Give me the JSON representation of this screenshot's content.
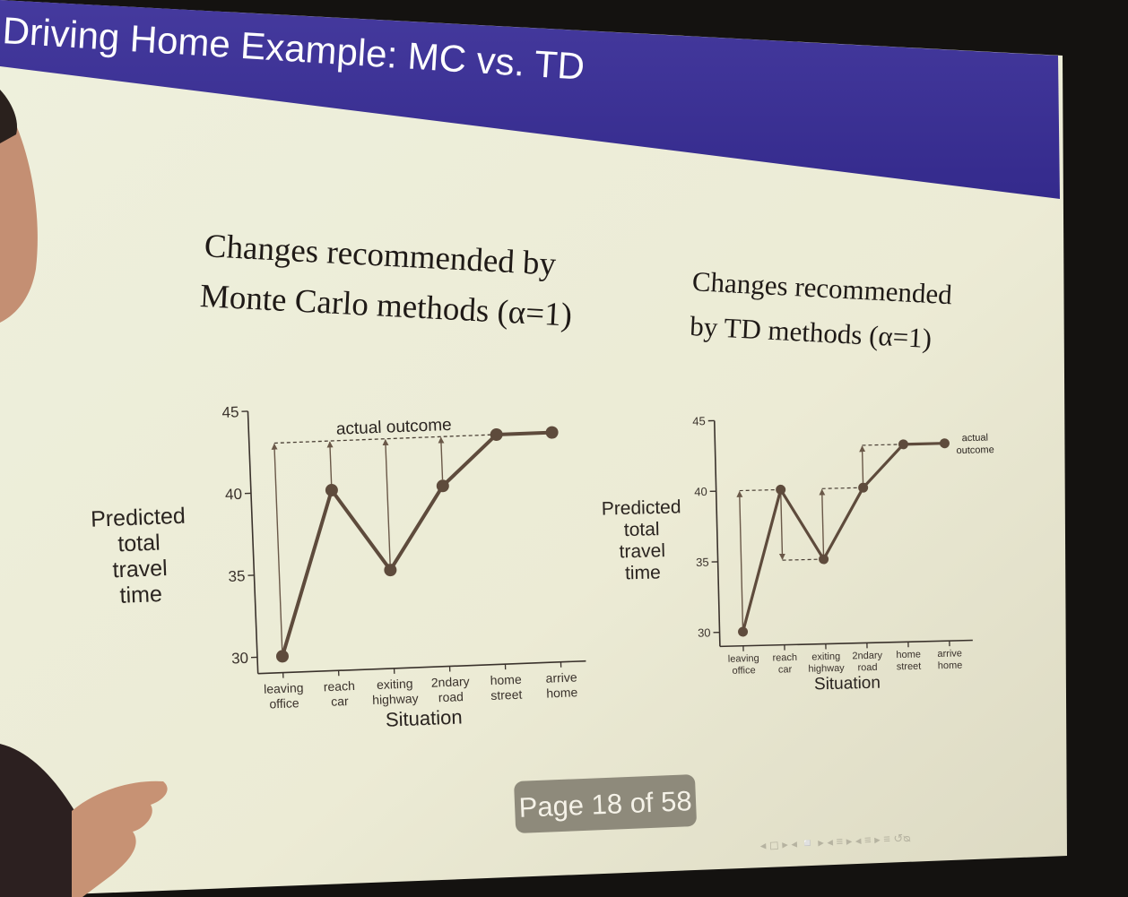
{
  "slide": {
    "title": "Driving Home Example: MC vs. TD",
    "page_indicator": "Page 18 of 58",
    "nav_glyphs": "◂ ◻ ▸ ◂ ◽ ▸ ◂ ≡ ▸ ◂ ≡ ▸   ≡   ↺ᴓ",
    "colors": {
      "title_bar": "#3e3199",
      "slide_bg": "#ecedd8",
      "plot_line": "#5e4b3c",
      "page_badge": "#8e8a7b",
      "room": "#141210"
    }
  },
  "chart_data": [
    {
      "type": "line",
      "title_lines": [
        "Changes recommended by",
        "Monte Carlo methods (α=1)"
      ],
      "ylabel_lines": [
        "Predicted",
        "total",
        "travel",
        "time"
      ],
      "xlabel": "Situation",
      "categories": [
        [
          "leaving",
          "office"
        ],
        [
          "reach",
          "car"
        ],
        [
          "exiting",
          "highway"
        ],
        [
          "2ndary",
          "road"
        ],
        [
          "home",
          "street"
        ],
        [
          "arrive",
          "home"
        ]
      ],
      "values": [
        30,
        40,
        35,
        40,
        43,
        43
      ],
      "yticks": [
        30,
        35,
        40,
        45
      ],
      "ylim": [
        29,
        45
      ],
      "actual_outcome": 43,
      "annotation": "actual outcome",
      "arrows": [
        {
          "category_index": 0,
          "from": 30,
          "to": 43
        },
        {
          "category_index": 1,
          "from": 40,
          "to": 43
        },
        {
          "category_index": 2,
          "from": 35,
          "to": 43
        },
        {
          "category_index": 3,
          "from": 40,
          "to": 43
        }
      ]
    },
    {
      "type": "line",
      "title_lines": [
        "Changes recommended",
        "by TD methods (α=1)"
      ],
      "ylabel_lines": [
        "Predicted",
        "total",
        "travel",
        "time"
      ],
      "xlabel": "Situation",
      "categories": [
        [
          "leaving",
          "office"
        ],
        [
          "reach",
          "car"
        ],
        [
          "exiting",
          "highway"
        ],
        [
          "2ndary",
          "road"
        ],
        [
          "home",
          "street"
        ],
        [
          "arrive",
          "home"
        ]
      ],
      "values": [
        30,
        40,
        35,
        40,
        43,
        43
      ],
      "yticks": [
        30,
        35,
        40,
        45
      ],
      "ylim": [
        29,
        45
      ],
      "annotation_lines": [
        "actual",
        "outcome"
      ],
      "arrows": [
        {
          "category_index": 0,
          "from": 30,
          "to": 40
        },
        {
          "category_index": 1,
          "from": 40,
          "to": 35
        },
        {
          "category_index": 2,
          "from": 35,
          "to": 40
        },
        {
          "category_index": 3,
          "from": 40,
          "to": 43
        }
      ]
    }
  ]
}
